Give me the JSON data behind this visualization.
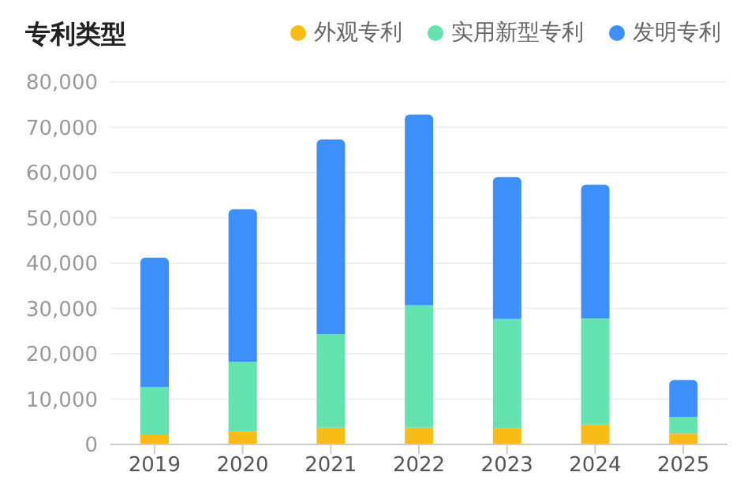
{
  "chart_data": {
    "type": "bar",
    "title": "专利类型",
    "stacked": true,
    "categories": [
      "2019",
      "2020",
      "2021",
      "2022",
      "2023",
      "2024",
      "2025"
    ],
    "series": [
      {
        "name": "外观专利",
        "color": "#f7bc16",
        "values": [
          2100,
          2900,
          3700,
          3700,
          3600,
          4400,
          2400
        ]
      },
      {
        "name": "实用新型专利",
        "color": "#62e3b0",
        "values": [
          10600,
          15300,
          20600,
          27000,
          24100,
          23400,
          3700
        ]
      },
      {
        "name": "发明专利",
        "color": "#3d8ffc",
        "values": [
          28500,
          33700,
          43000,
          42100,
          31300,
          29500,
          8100
        ]
      }
    ],
    "ylim": [
      0,
      80000
    ],
    "yticks": [
      0,
      {
        "value": 10000,
        "label": "10,000"
      },
      {
        "value": 20000,
        "label": "20,000"
      },
      {
        "value": 30000,
        "label": "30,000"
      },
      {
        "value": 40000,
        "label": "40,000"
      },
      {
        "value": 50000,
        "label": "50,000"
      },
      {
        "value": 60000,
        "label": "60,000"
      },
      {
        "value": 70000,
        "label": "70,000"
      },
      {
        "value": 80000,
        "label": "80,000"
      }
    ],
    "grid": "y",
    "legend": "top right"
  }
}
